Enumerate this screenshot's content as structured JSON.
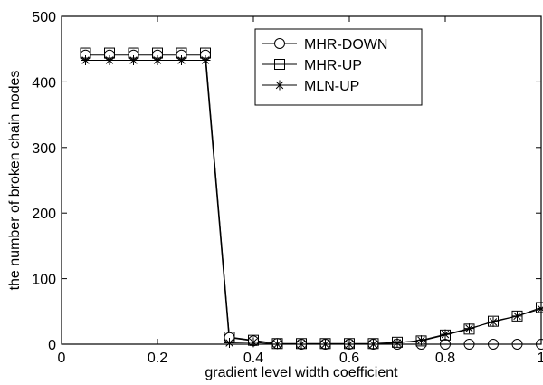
{
  "chart_data": {
    "type": "line",
    "xlabel": "gradient level width coefficient",
    "ylabel": "the number of broken chain nodes",
    "xlim": [
      0,
      1
    ],
    "ylim": [
      0,
      500
    ],
    "xticks": [
      "0",
      "0.2",
      "0.4",
      "0.6",
      "0.8",
      "1"
    ],
    "yticks": [
      "0",
      "100",
      "200",
      "300",
      "400",
      "500"
    ],
    "grid": false,
    "legend_position": "top-right",
    "x": [
      0.05,
      0.1,
      0.15,
      0.2,
      0.25,
      0.3,
      0.35,
      0.4,
      0.45,
      0.5,
      0.55,
      0.6,
      0.65,
      0.7,
      0.75,
      0.8,
      0.85,
      0.9,
      0.95,
      1.0
    ],
    "series": [
      {
        "name": "MHR-DOWN",
        "marker": "circle",
        "values": [
          441,
          441,
          441,
          441,
          441,
          441,
          10,
          5,
          1,
          0,
          0,
          0,
          0,
          0,
          0,
          0,
          0,
          0,
          0,
          0
        ]
      },
      {
        "name": "MHR-UP",
        "marker": "square",
        "values": [
          444,
          444,
          444,
          444,
          444,
          444,
          11,
          6,
          1,
          1,
          1,
          1,
          1,
          3,
          5,
          14,
          23,
          35,
          43,
          56
        ]
      },
      {
        "name": "MLN-UP",
        "marker": "star",
        "values": [
          433,
          433,
          433,
          433,
          433,
          433,
          2,
          3,
          0,
          0,
          0,
          0,
          0,
          2,
          6,
          15,
          24,
          34,
          43,
          54
        ]
      }
    ]
  }
}
